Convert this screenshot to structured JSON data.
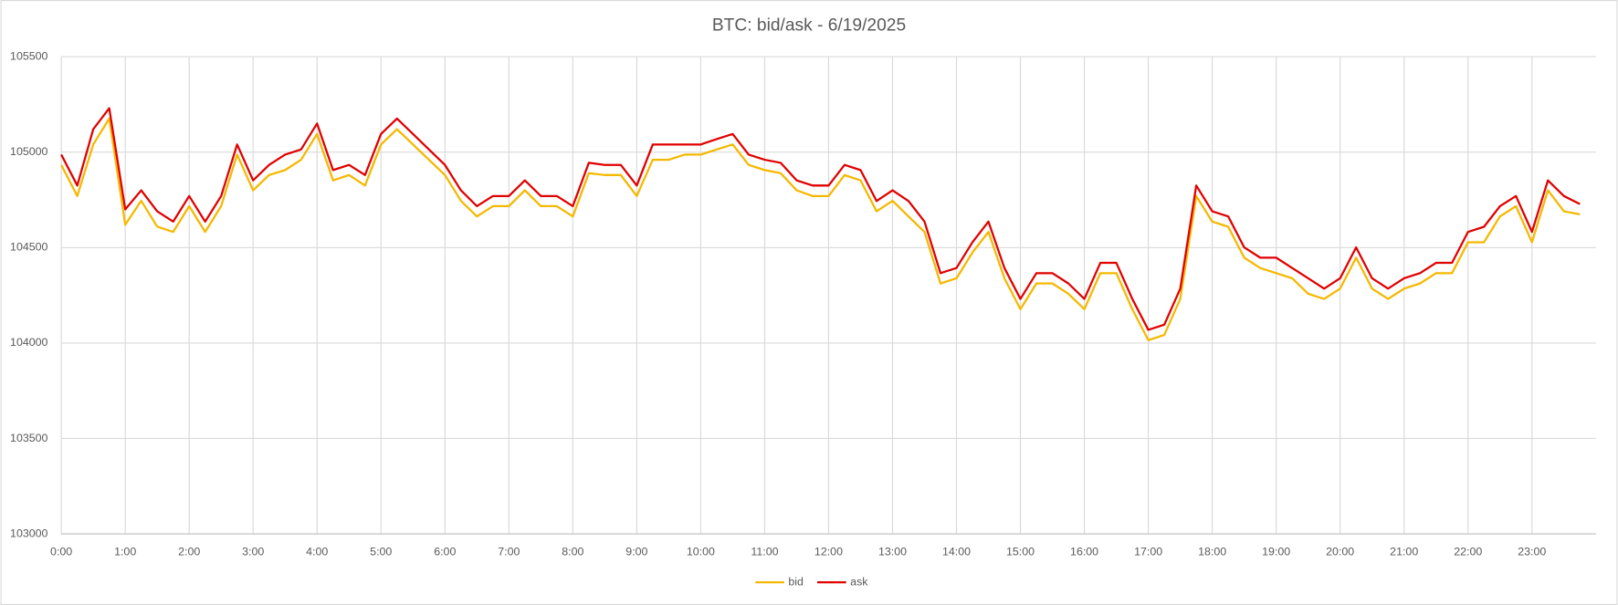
{
  "chart_data": {
    "type": "line",
    "title": "BTC: bid/ask - 6/19/2025",
    "x": [
      0,
      0.25,
      0.5,
      0.75,
      1,
      1.25,
      1.5,
      1.75,
      2,
      2.25,
      2.5,
      2.75,
      3,
      3.25,
      3.5,
      3.75,
      4,
      4.25,
      4.5,
      4.75,
      5,
      5.25,
      5.5,
      5.75,
      6,
      6.25,
      6.5,
      6.75,
      7,
      7.25,
      7.5,
      7.75,
      8,
      8.25,
      8.5,
      8.75,
      9,
      9.25,
      9.5,
      9.75,
      10,
      10.25,
      10.5,
      10.75,
      11,
      11.25,
      11.5,
      11.75,
      12,
      12.25,
      12.5,
      12.75,
      13,
      13.25,
      13.5,
      13.75,
      14,
      14.25,
      14.5,
      14.75,
      15,
      15.25,
      15.5,
      15.75,
      16,
      16.25,
      16.5,
      16.75,
      17,
      17.25,
      17.5,
      17.75,
      18,
      18.25,
      18.5,
      18.75,
      19,
      19.25,
      19.5,
      19.75,
      20,
      20.25,
      20.5,
      20.75,
      21,
      21.25,
      21.5,
      21.75,
      22,
      22.25,
      22.5,
      22.75,
      23,
      23.25,
      23.5,
      23.75
    ],
    "series": [
      {
        "name": "bid",
        "color": "#f5b800",
        "values": [
          104933,
          104770,
          105040,
          105176,
          104620,
          104745,
          104610,
          104582,
          104717,
          104582,
          104717,
          104987,
          104800,
          104880,
          104906,
          104960,
          105095,
          104852,
          104880,
          104825,
          105040,
          105120,
          105040,
          104960,
          104880,
          104745,
          104663,
          104717,
          104717,
          104800,
          104717,
          104717,
          104663,
          104890,
          104880,
          104880,
          104770,
          104960,
          104960,
          104987,
          104987,
          105014,
          105040,
          104933,
          104906,
          104890,
          104800,
          104770,
          104770,
          104880,
          104852,
          104690,
          104745,
          104663,
          104582,
          104312,
          104339,
          104474,
          104582,
          104339,
          104177,
          104312,
          104312,
          104258,
          104177,
          104366,
          104366,
          104177,
          104015,
          104042,
          104231,
          104770,
          104636,
          104609,
          104447,
          104393,
          104366,
          104339,
          104258,
          104231,
          104285,
          104447,
          104285,
          104231,
          104285,
          104312,
          104366,
          104366,
          104528,
          104528,
          104663,
          104717,
          104528,
          104800,
          104690,
          104674
        ]
      },
      {
        "name": "ask",
        "color": "#e00000",
        "values": [
          104987,
          104825,
          105120,
          105230,
          104700,
          104800,
          104690,
          104636,
          104770,
          104636,
          104770,
          105040,
          104852,
          104933,
          104987,
          105014,
          105150,
          104906,
          104933,
          104880,
          105095,
          105176,
          105095,
          105014,
          104933,
          104800,
          104717,
          104770,
          104770,
          104852,
          104770,
          104770,
          104717,
          104944,
          104933,
          104933,
          104825,
          105040,
          105040,
          105040,
          105040,
          105068,
          105095,
          104987,
          104960,
          104944,
          104852,
          104825,
          104825,
          104933,
          104906,
          104744,
          104800,
          104744,
          104636,
          104366,
          104393,
          104528,
          104636,
          104393,
          104231,
          104366,
          104366,
          104312,
          104231,
          104420,
          104420,
          104231,
          104069,
          104096,
          104285,
          104825,
          104690,
          104663,
          104501,
          104447,
          104447,
          104393,
          104339,
          104285,
          104339,
          104501,
          104339,
          104285,
          104339,
          104366,
          104420,
          104420,
          104582,
          104609,
          104717,
          104770,
          104582,
          104852,
          104770,
          104728
        ]
      }
    ],
    "xlim": [
      0,
      24
    ],
    "xticks": [
      {
        "value": 0,
        "label": "0:00"
      },
      {
        "value": 1,
        "label": "1:00"
      },
      {
        "value": 2,
        "label": "2:00"
      },
      {
        "value": 3,
        "label": "3:00"
      },
      {
        "value": 4,
        "label": "4:00"
      },
      {
        "value": 5,
        "label": "5:00"
      },
      {
        "value": 6,
        "label": "6:00"
      },
      {
        "value": 7,
        "label": "7:00"
      },
      {
        "value": 8,
        "label": "8:00"
      },
      {
        "value": 9,
        "label": "9:00"
      },
      {
        "value": 10,
        "label": "10:00"
      },
      {
        "value": 11,
        "label": "11:00"
      },
      {
        "value": 12,
        "label": "12:00"
      },
      {
        "value": 13,
        "label": "13:00"
      },
      {
        "value": 14,
        "label": "14:00"
      },
      {
        "value": 15,
        "label": "15:00"
      },
      {
        "value": 16,
        "label": "16:00"
      },
      {
        "value": 17,
        "label": "17:00"
      },
      {
        "value": 18,
        "label": "18:00"
      },
      {
        "value": 19,
        "label": "19:00"
      },
      {
        "value": 20,
        "label": "20:00"
      },
      {
        "value": 21,
        "label": "21:00"
      },
      {
        "value": 22,
        "label": "22:00"
      },
      {
        "value": 23,
        "label": "23:00"
      }
    ],
    "ylim": [
      103000,
      105500
    ],
    "yticks": [
      103000,
      103500,
      104000,
      104500,
      105000,
      105500
    ],
    "grid": true,
    "legend": "bottom"
  }
}
